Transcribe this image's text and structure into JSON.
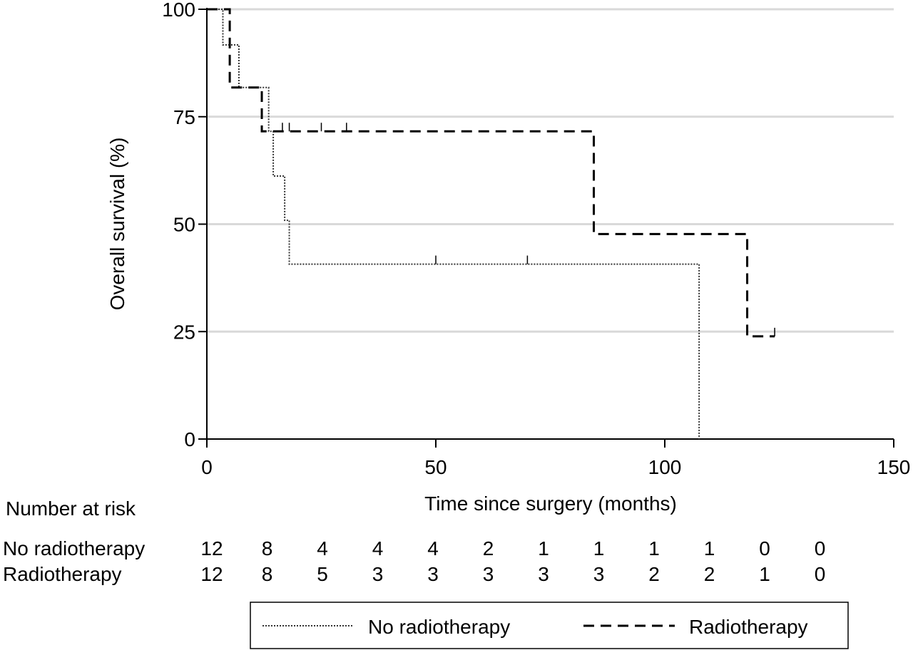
{
  "chart_data": {
    "type": "line",
    "title": "",
    "xlabel": "Time since surgery (months)",
    "ylabel": "Overall survival (%)",
    "xlim": [
      0,
      150
    ],
    "ylim": [
      0,
      100
    ],
    "x_ticks": [
      0,
      50,
      100,
      150
    ],
    "y_ticks": [
      0,
      25,
      50,
      75,
      100
    ],
    "grid": "horizontal",
    "legend_position": "bottom",
    "series": [
      {
        "name": "No radiotherapy",
        "style": "dotted",
        "steps": [
          [
            0,
            100
          ],
          [
            3.5,
            91.7
          ],
          [
            7,
            81.8
          ],
          [
            13.5,
            71.6
          ],
          [
            14.5,
            61.2
          ],
          [
            17,
            50.9
          ],
          [
            18,
            40.7
          ],
          [
            107.5,
            40.7
          ],
          [
            107.5,
            0
          ]
        ],
        "censor_x": [
          50,
          70
        ]
      },
      {
        "name": "Radiotherapy",
        "style": "dashed",
        "steps": [
          [
            0,
            100
          ],
          [
            5,
            81.8
          ],
          [
            12,
            71.6
          ],
          [
            84.5,
            47.7
          ],
          [
            118,
            23.9
          ],
          [
            124,
            23.9
          ]
        ],
        "censor_x": [
          16.5,
          18,
          25,
          30.5,
          124
        ]
      }
    ],
    "risk_table": {
      "title": "Number at risk",
      "rows": [
        {
          "label": "No radiotherapy",
          "values": [
            12,
            8,
            4,
            4,
            4,
            2,
            1,
            1,
            1,
            1,
            0,
            0
          ]
        },
        {
          "label": "Radiotherapy",
          "values": [
            12,
            8,
            5,
            3,
            3,
            3,
            3,
            3,
            2,
            2,
            1,
            0
          ]
        }
      ]
    }
  }
}
